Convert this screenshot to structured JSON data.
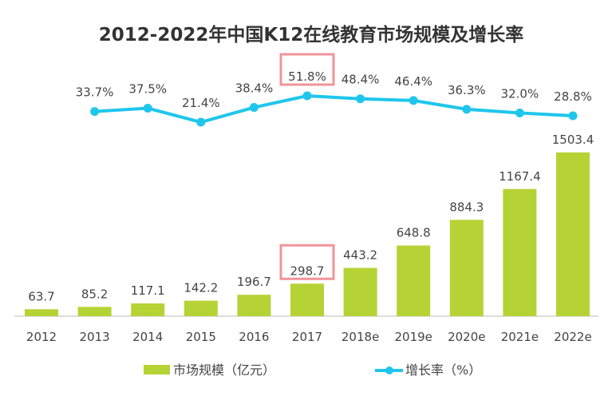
{
  "chart_data": {
    "type": "bar+line",
    "title": "2012-2022年中国K12在线教育市场规模及增长率",
    "categories": [
      "2012",
      "2013",
      "2014",
      "2015",
      "2016",
      "2017",
      "2018e",
      "2019e",
      "2020e",
      "2021e",
      "2022e"
    ],
    "series": [
      {
        "name": "市场规模（亿元）",
        "type": "bar",
        "color": "#b5d334",
        "values": [
          63.7,
          85.2,
          117.1,
          142.2,
          196.7,
          298.7,
          443.2,
          648.8,
          884.3,
          1167.4,
          1503.4
        ],
        "labels": [
          "63.7",
          "85.2",
          "117.1",
          "142.2",
          "196.7",
          "298.7",
          "443.2",
          "648.8",
          "884.3",
          "1167.4",
          "1503.4"
        ]
      },
      {
        "name": "增长率（%）",
        "type": "line",
        "color": "#1fc6ec",
        "values": [
          null,
          33.7,
          37.5,
          21.4,
          38.4,
          51.8,
          48.4,
          46.4,
          36.3,
          32.0,
          28.8
        ],
        "labels": [
          "",
          "33.7%",
          "37.5%",
          "21.4%",
          "38.4%",
          "51.8%",
          "48.4%",
          "46.4%",
          "36.3%",
          "32.0%",
          "28.8%"
        ]
      }
    ],
    "highlights": {
      "category": "2017",
      "color": "#f0959a"
    },
    "legend": "bottom",
    "grid": false
  }
}
